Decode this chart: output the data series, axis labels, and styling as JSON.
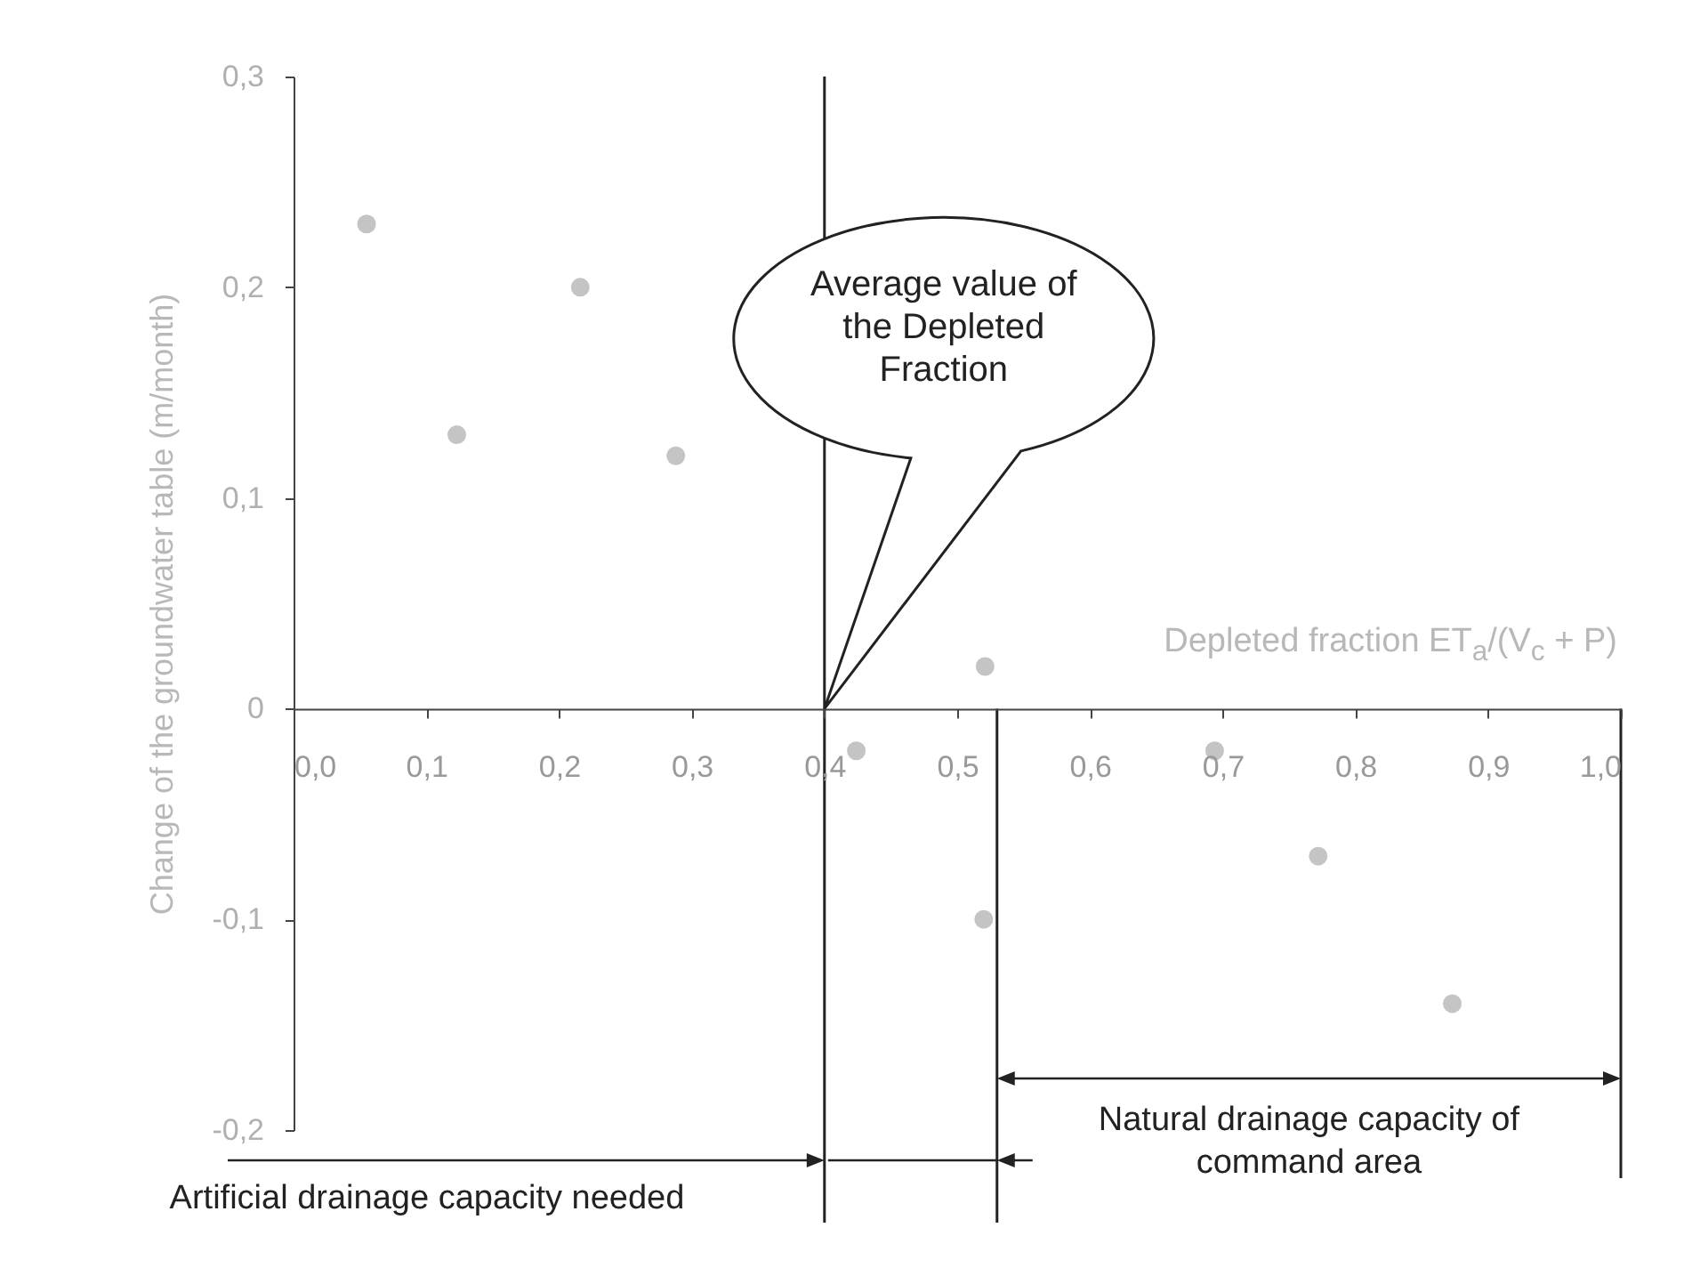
{
  "chart_data": {
    "type": "scatter",
    "xlabel": "Depleted fraction ET$_{a}$/(V$_{c}$ + P)",
    "ylabel": "Change of the groundwater table (m/month)",
    "x": [
      0.055,
      0.123,
      0.216,
      0.288,
      0.424,
      0.521,
      0.52,
      0.694,
      0.772,
      0.873
    ],
    "series": [
      {
        "color": "#c4c4c4",
        "values": [
          0.23,
          0.13,
          0.2,
          0.12,
          -0.02,
          0.02,
          -0.1,
          -0.02,
          -0.07,
          -0.14
        ]
      }
    ],
    "marker": "circle",
    "xlim": [
      0,
      1
    ],
    "xticks": [
      {
        "value": 0,
        "label": "0,0"
      },
      {
        "value": 0.1,
        "label": "0,1"
      },
      {
        "value": 0.2,
        "label": "0,2"
      },
      {
        "value": 0.3,
        "label": "0,3"
      },
      {
        "value": 0.4,
        "label": "0,4"
      },
      {
        "value": 0.5,
        "label": "0,5"
      },
      {
        "value": 0.6,
        "label": "0,6"
      },
      {
        "value": 0.7,
        "label": "0,7"
      },
      {
        "value": 0.8,
        "label": "0,8"
      },
      {
        "value": 0.9,
        "label": "0,9"
      },
      {
        "value": 1,
        "label": "1,0"
      }
    ],
    "ylim": [
      -0.2,
      0.3
    ],
    "yticks": [
      {
        "value": -0.2,
        "label": "-0,2"
      },
      {
        "value": -0.1,
        "label": "-0,1"
      },
      0,
      {
        "value": 0.1,
        "label": "0,1"
      },
      {
        "value": 0.2,
        "label": "0,2"
      },
      {
        "value": 0.3,
        "label": "0,3"
      }
    ],
    "ref_lines": [
      {
        "axis": "x",
        "value": 0.4,
        "label": "Average value of the Depleted Fraction",
        "color": "#222222"
      },
      {
        "axis": "x",
        "value": 0.53,
        "color": "#222222"
      },
      {
        "axis": "x",
        "value": 1,
        "color": "#222222"
      }
    ],
    "annotations": [
      "Artificial drainage capacity needed",
      "Natural drainage capacity of command area"
    ],
    "grid": false
  }
}
